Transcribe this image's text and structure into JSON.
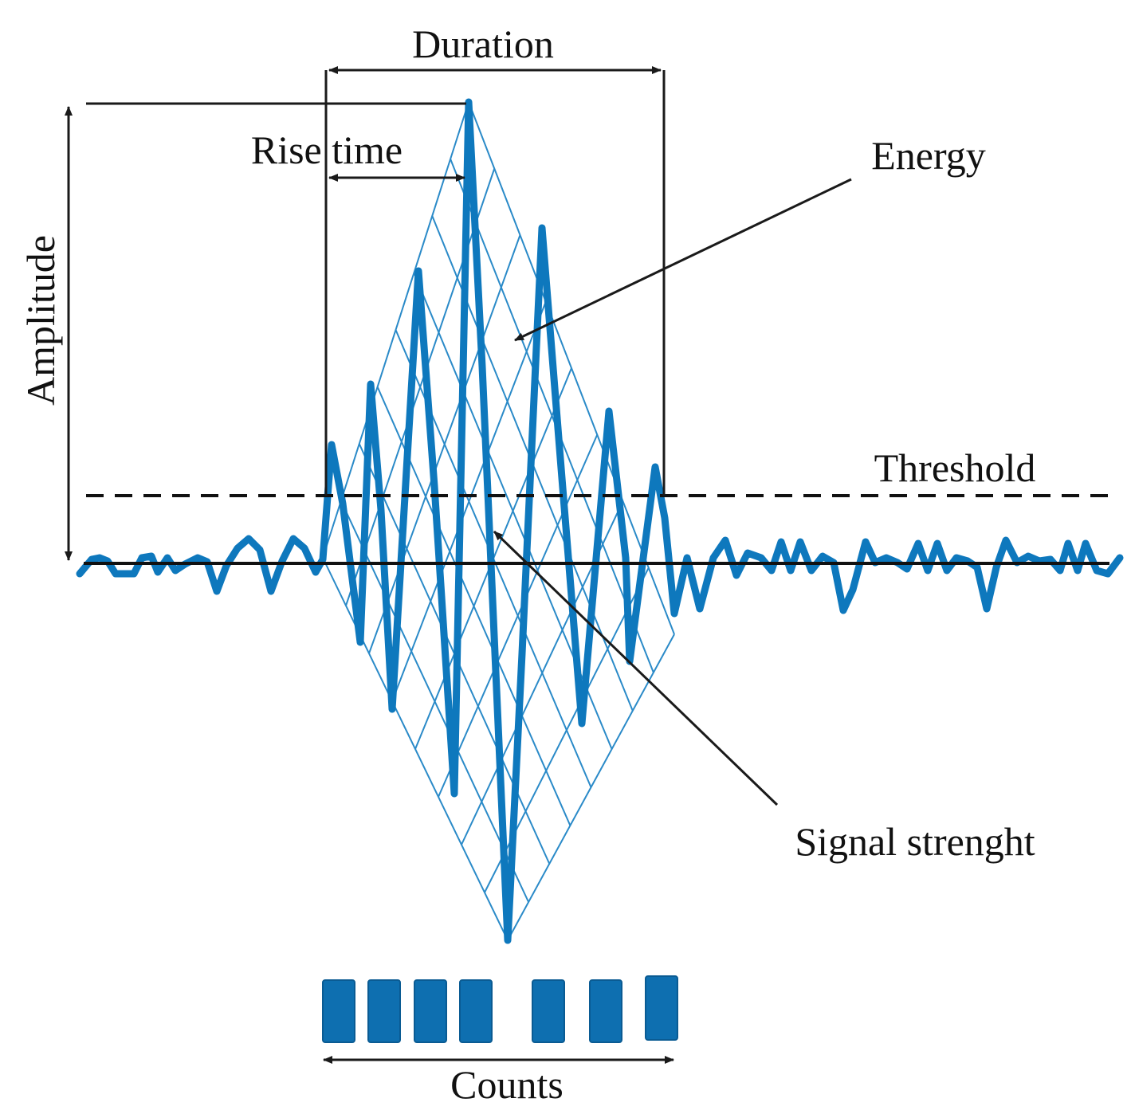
{
  "labels": {
    "duration": "Duration",
    "rise_time": "Rise time",
    "energy": "Energy",
    "amplitude": "Amplitude",
    "threshold": "Threshold",
    "signal_strength": "Signal strenght",
    "counts": "Counts"
  },
  "colors": {
    "signal": "#0e78bd",
    "mesh": "#2a8ac8",
    "count_box": "#0e6fb0",
    "annotation": "#1a1a1a"
  },
  "count_boxes": 7
}
